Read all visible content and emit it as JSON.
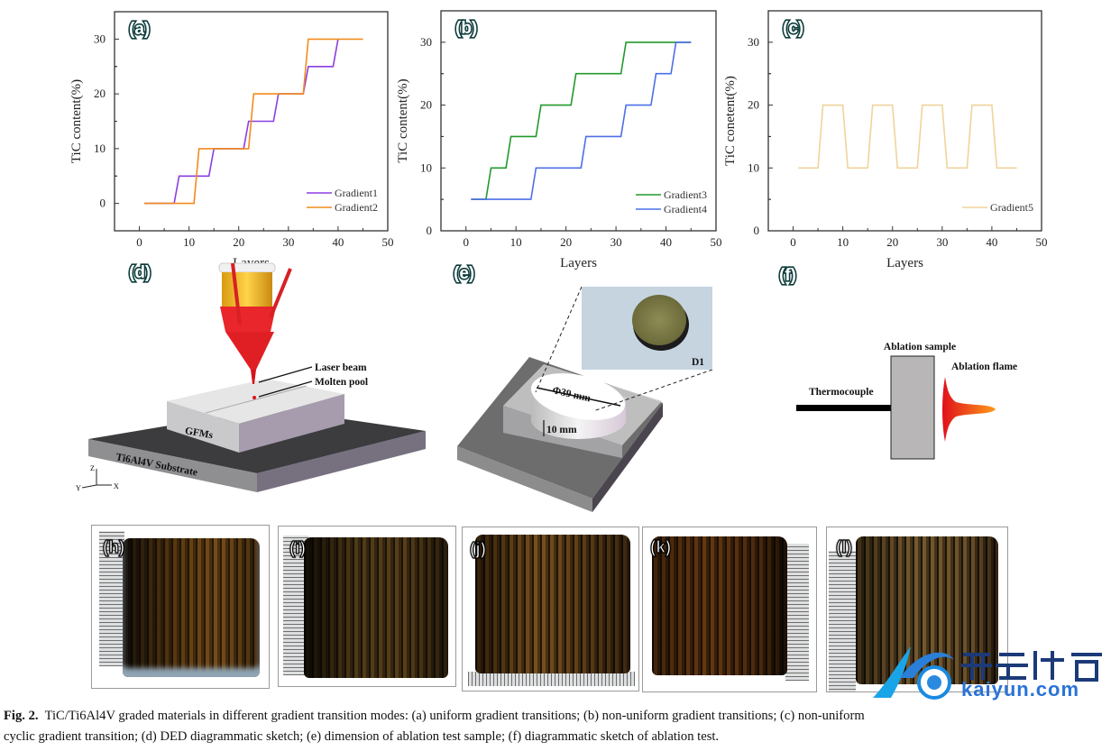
{
  "chart_data": [
    {
      "panel": "(a)",
      "type": "line",
      "xlabel": "Layers",
      "ylabel": "TiC content(%)",
      "xlim": [
        -5,
        50
      ],
      "ylim": [
        -5,
        35
      ],
      "xticks": [
        0,
        10,
        20,
        30,
        40,
        50
      ],
      "yticks": [
        0,
        10,
        20,
        30
      ],
      "grid": false,
      "legend": "bottom-right",
      "series": [
        {
          "name": "Gradient1",
          "color": "#8b3fe0",
          "x": [
            1,
            7,
            8,
            14,
            15,
            21,
            22,
            27,
            28,
            33,
            34,
            39,
            40
          ],
          "y": [
            0,
            0,
            5,
            5,
            10,
            10,
            15,
            15,
            20,
            20,
            25,
            25,
            30
          ]
        },
        {
          "name": "Gradient2",
          "color": "#f28c1e",
          "x": [
            1,
            11,
            12,
            22,
            23,
            33,
            34,
            45
          ],
          "y": [
            0,
            0,
            10,
            10,
            20,
            20,
            30,
            30
          ]
        }
      ]
    },
    {
      "panel": "(b)",
      "type": "line",
      "xlabel": "Layers",
      "ylabel": "TiC content(%)",
      "xlim": [
        -5,
        50
      ],
      "ylim": [
        0,
        35
      ],
      "xticks": [
        0,
        10,
        20,
        30,
        40,
        50
      ],
      "yticks": [
        0,
        10,
        20,
        30
      ],
      "grid": false,
      "legend": "bottom-right",
      "series": [
        {
          "name": "Gradient3",
          "color": "#22992c",
          "x": [
            1,
            4,
            5,
            8,
            9,
            14,
            15,
            21,
            22,
            31,
            32,
            45
          ],
          "y": [
            5,
            5,
            10,
            10,
            15,
            15,
            20,
            20,
            25,
            25,
            30,
            30
          ]
        },
        {
          "name": "Gradient4",
          "color": "#4d6fe8",
          "x": [
            1,
            13,
            14,
            23,
            24,
            31,
            32,
            37,
            38,
            41,
            42,
            45
          ],
          "y": [
            5,
            5,
            10,
            10,
            15,
            15,
            20,
            20,
            25,
            25,
            30,
            30
          ]
        }
      ]
    },
    {
      "panel": "(c)",
      "type": "line",
      "xlabel": "Layers",
      "ylabel": "TiC conetent(%)",
      "xlim": [
        -5,
        50
      ],
      "ylim": [
        0,
        35
      ],
      "xticks": [
        0,
        10,
        20,
        30,
        40,
        50
      ],
      "yticks": [
        0,
        10,
        20,
        30
      ],
      "grid": false,
      "legend": "bottom-right",
      "series": [
        {
          "name": "Gradient5",
          "color": "#efd49b",
          "x": [
            1,
            5,
            6,
            10,
            11,
            15,
            16,
            20,
            21,
            25,
            26,
            30,
            31,
            35,
            36,
            40,
            41,
            45
          ],
          "y": [
            10,
            10,
            20,
            20,
            10,
            10,
            20,
            20,
            10,
            10,
            20,
            20,
            10,
            10,
            20,
            20,
            10,
            10
          ]
        }
      ]
    }
  ],
  "panels": {
    "d": {
      "label": "(d)",
      "laser_beam": "Laser beam",
      "molten_pool": "Molten pool",
      "block": "GFMs",
      "substrate": "Ti6Al4V Substrate",
      "axis_z": "Z",
      "axis_y": "Y",
      "axis_x": "X"
    },
    "e": {
      "label": "(e)",
      "diameter": "Φ39 mm",
      "height": "10 mm",
      "sample_id": "D1"
    },
    "f": {
      "label": "(f)",
      "sample": "Ablation sample",
      "flame": "Ablation flame",
      "thermocouple": "Thermocouple"
    },
    "photos": [
      "(h)",
      "(i)",
      "(j)",
      "(k)",
      "(l)"
    ]
  },
  "caption": {
    "fig": "Fig. 2.",
    "line1": "TiC/Ti6Al4V graded materials in different gradient transition modes: (a) uniform gradient transitions; (b) non-uniform gradient transitions; (c) non-uniform",
    "line2": "cyclic gradient transition; (d) DED diagrammatic sketch; (e) dimension of ablation test sample; (f) diagrammatic sketch of ablation test."
  },
  "watermark": {
    "cn": "开云体育",
    "en": "kaiyun.com"
  }
}
